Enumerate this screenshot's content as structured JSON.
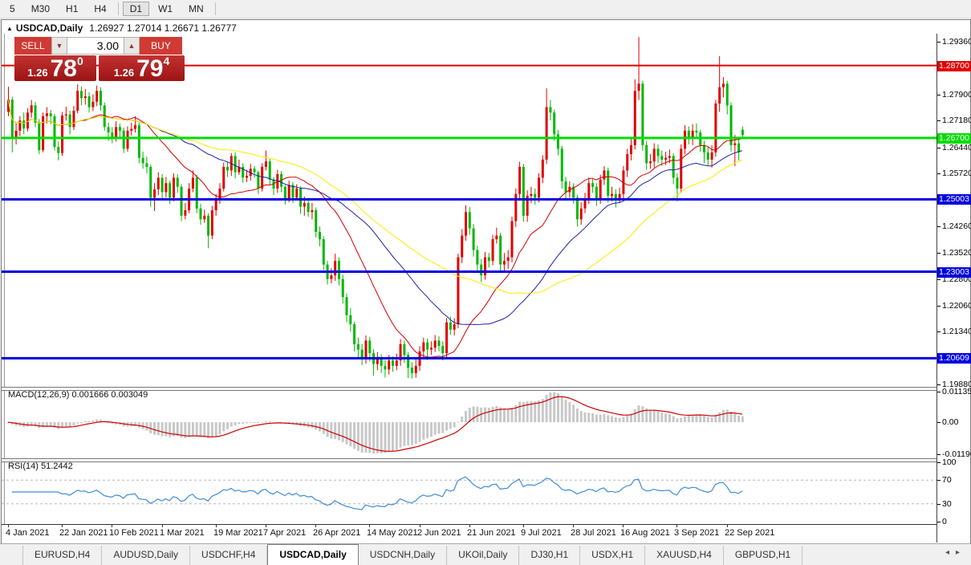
{
  "toolbar": {
    "items": [
      "5",
      "M30",
      "H1",
      "H4",
      "D1",
      "W1",
      "MN"
    ],
    "active": "D1",
    "separators_after": [
      "H4",
      "MN"
    ]
  },
  "window": {
    "collapse_icon": "▲",
    "title_symbol": "USDCAD,Daily",
    "title_ohlc": "1.26927 1.27014 1.26671 1.26777"
  },
  "trade_panel": {
    "sell_label": "SELL",
    "buy_label": "BUY",
    "volume": "3.00",
    "spin_down_icon": "▼",
    "spin_up_icon": "▲",
    "sell_price": {
      "prefix": "1.26",
      "big": "78",
      "sup": "0"
    },
    "buy_price": {
      "prefix": "1.26",
      "big": "79",
      "sup": "4"
    }
  },
  "chart_data": {
    "type": "candlestick",
    "symbol": "USDCAD",
    "timeframe": "Daily",
    "bull_color": "#e00000",
    "bear_color": "#00b800",
    "price_range": [
      1.1982,
      1.2958
    ],
    "y_ticks": [
      {
        "label": "1.29360",
        "price": 1.2936
      },
      {
        "label": "1.27900",
        "price": 1.279
      },
      {
        "label": "1.27180",
        "price": 1.2718
      },
      {
        "label": "1.26440",
        "price": 1.2644
      },
      {
        "label": "1.25720",
        "price": 1.2572
      },
      {
        "label": "1.24260",
        "price": 1.2426
      },
      {
        "label": "1.23520",
        "price": 1.2352
      },
      {
        "label": "1.22800",
        "price": 1.228
      },
      {
        "label": "1.22060",
        "price": 1.2206
      },
      {
        "label": "1.21340",
        "price": 1.2134
      },
      {
        "label": "1.19880",
        "price": 1.1988
      }
    ],
    "levels": [
      {
        "label": "1.28700",
        "price": 1.287,
        "color": "#e00000",
        "thickness": 2
      },
      {
        "label": "1.26700",
        "price": 1.267,
        "color": "#00dd00",
        "thickness": 3
      },
      {
        "label": "1.25003",
        "price": 1.25003,
        "color": "#0000e0",
        "thickness": 3
      },
      {
        "label": "1.23003",
        "price": 1.23003,
        "color": "#0000e0",
        "thickness": 3
      },
      {
        "label": "1.20609",
        "price": 1.20609,
        "color": "#0000e0",
        "thickness": 3
      }
    ],
    "x_ticks": [
      {
        "label": "4 Jan 2021",
        "bar": 0
      },
      {
        "label": "22 Jan 2021",
        "bar": 14
      },
      {
        "label": "10 Feb 2021",
        "bar": 27
      },
      {
        "label": "1 Mar 2021",
        "bar": 40
      },
      {
        "label": "19 Mar 2021",
        "bar": 54
      },
      {
        "label": "7 Apr 2021",
        "bar": 67
      },
      {
        "label": "26 Apr 2021",
        "bar": 80
      },
      {
        "label": "14 May 2021",
        "bar": 94
      },
      {
        "label": "2 Jun 2021",
        "bar": 107
      },
      {
        "label": "21 Jun 2021",
        "bar": 120
      },
      {
        "label": "9 Jul 2021",
        "bar": 134
      },
      {
        "label": "28 Jul 2021",
        "bar": 147
      },
      {
        "label": "16 Aug 2021",
        "bar": 160
      },
      {
        "label": "3 Sep 2021",
        "bar": 174
      },
      {
        "label": "22 Sep 2021",
        "bar": 187
      }
    ],
    "moving_averages": [
      {
        "period": 20,
        "color": "#d00000"
      },
      {
        "period": 40,
        "color": "#1f1fa8"
      },
      {
        "period": 60,
        "color": "#ffe800"
      }
    ],
    "macd": {
      "label": "MACD(12,26,9) 0.001666 0.003049",
      "fast": 12,
      "slow": 26,
      "signal": 9,
      "range": [
        -0.0119,
        0.01135
      ],
      "ticks": [
        {
          "label": "0.01135",
          "v": 0.01135
        },
        {
          "label": "0.00",
          "v": 0
        },
        {
          "label": "-0.011904",
          "v": -0.011904
        }
      ],
      "hist_color": "#c8c8c8",
      "line_color": "#d00000"
    },
    "rsi": {
      "label": "RSI(14) 51.2442",
      "period": 14,
      "range": [
        0,
        100
      ],
      "ticks": [
        {
          "label": "100",
          "v": 100
        },
        {
          "label": "70",
          "v": 70
        },
        {
          "label": "30",
          "v": 30
        },
        {
          "label": "0",
          "v": 0
        }
      ],
      "level_lines": [
        70,
        30
      ],
      "color": "#3c8cdc"
    },
    "candles_ohlc": [
      [
        1.2742,
        1.2812,
        1.273,
        1.2776
      ],
      [
        1.2776,
        1.2784,
        1.263,
        1.2668
      ],
      [
        1.2668,
        1.271,
        1.2652,
        1.269
      ],
      [
        1.269,
        1.273,
        1.2675,
        1.2718
      ],
      [
        1.2718,
        1.274,
        1.268,
        1.2696
      ],
      [
        1.2696,
        1.2752,
        1.2688,
        1.274
      ],
      [
        1.274,
        1.2775,
        1.2726,
        1.276
      ],
      [
        1.276,
        1.277,
        1.27,
        1.2712
      ],
      [
        1.2712,
        1.2722,
        1.2625,
        1.2636
      ],
      [
        1.2636,
        1.274,
        1.263,
        1.273
      ],
      [
        1.273,
        1.2755,
        1.271,
        1.2738
      ],
      [
        1.2738,
        1.2748,
        1.2708,
        1.273
      ],
      [
        1.273,
        1.2736,
        1.2635,
        1.2645
      ],
      [
        1.2645,
        1.266,
        1.2608,
        1.2628
      ],
      [
        1.2628,
        1.2742,
        1.262,
        1.2732
      ],
      [
        1.2732,
        1.2756,
        1.2718,
        1.2735
      ],
      [
        1.2735,
        1.2745,
        1.268,
        1.27
      ],
      [
        1.27,
        1.2758,
        1.2692,
        1.2745
      ],
      [
        1.2745,
        1.2818,
        1.2738,
        1.28
      ],
      [
        1.28,
        1.2812,
        1.276,
        1.278
      ],
      [
        1.278,
        1.2805,
        1.2762,
        1.2785
      ],
      [
        1.2785,
        1.2796,
        1.274,
        1.2755
      ],
      [
        1.2755,
        1.279,
        1.2744,
        1.277
      ],
      [
        1.277,
        1.2815,
        1.2758,
        1.28
      ],
      [
        1.28,
        1.281,
        1.2745,
        1.276
      ],
      [
        1.276,
        1.2768,
        1.269,
        1.27
      ],
      [
        1.27,
        1.2712,
        1.2662,
        1.2685
      ],
      [
        1.2685,
        1.27,
        1.2655,
        1.2672
      ],
      [
        1.2672,
        1.2716,
        1.266,
        1.27
      ],
      [
        1.27,
        1.271,
        1.267,
        1.269
      ],
      [
        1.269,
        1.2698,
        1.2628,
        1.264
      ],
      [
        1.264,
        1.2702,
        1.2632,
        1.269
      ],
      [
        1.269,
        1.2712,
        1.2676,
        1.2695
      ],
      [
        1.2695,
        1.273,
        1.2685,
        1.2705
      ],
      [
        1.2705,
        1.2712,
        1.26,
        1.2615
      ],
      [
        1.2615,
        1.2632,
        1.2585,
        1.26
      ],
      [
        1.26,
        1.2618,
        1.2572,
        1.259
      ],
      [
        1.259,
        1.2596,
        1.248,
        1.2505
      ],
      [
        1.2505,
        1.2545,
        1.2468,
        1.2528
      ],
      [
        1.2528,
        1.2575,
        1.2512,
        1.256
      ],
      [
        1.256,
        1.257,
        1.2502,
        1.252
      ],
      [
        1.252,
        1.2562,
        1.2505,
        1.2545
      ],
      [
        1.2545,
        1.2552,
        1.2488,
        1.2505
      ],
      [
        1.2505,
        1.2572,
        1.2495,
        1.256
      ],
      [
        1.256,
        1.257,
        1.2518,
        1.2535
      ],
      [
        1.2535,
        1.2542,
        1.244,
        1.2455
      ],
      [
        1.2455,
        1.249,
        1.2445,
        1.247
      ],
      [
        1.247,
        1.2545,
        1.2462,
        1.253
      ],
      [
        1.253,
        1.258,
        1.252,
        1.256
      ],
      [
        1.256,
        1.2568,
        1.2462,
        1.2475
      ],
      [
        1.2475,
        1.2488,
        1.243,
        1.2445
      ],
      [
        1.2445,
        1.2472,
        1.2435,
        1.2455
      ],
      [
        1.2455,
        1.2462,
        1.2365,
        1.24
      ],
      [
        1.24,
        1.2482,
        1.239,
        1.247
      ],
      [
        1.247,
        1.2515,
        1.2455,
        1.25
      ],
      [
        1.25,
        1.2545,
        1.2488,
        1.253
      ],
      [
        1.253,
        1.2602,
        1.2522,
        1.259
      ],
      [
        1.259,
        1.2605,
        1.2562,
        1.258
      ],
      [
        1.258,
        1.2628,
        1.2565,
        1.262
      ],
      [
        1.262,
        1.263,
        1.2558,
        1.2575
      ],
      [
        1.2575,
        1.261,
        1.2568,
        1.259
      ],
      [
        1.259,
        1.26,
        1.2546,
        1.256
      ],
      [
        1.256,
        1.2582,
        1.2548,
        1.2565
      ],
      [
        1.2565,
        1.2598,
        1.2552,
        1.2585
      ],
      [
        1.2585,
        1.2592,
        1.256,
        1.2575
      ],
      [
        1.2575,
        1.258,
        1.2515,
        1.253
      ],
      [
        1.253,
        1.26,
        1.2522,
        1.259
      ],
      [
        1.259,
        1.2635,
        1.258,
        1.2605
      ],
      [
        1.2605,
        1.2612,
        1.254,
        1.2555
      ],
      [
        1.2555,
        1.2562,
        1.2512,
        1.253
      ],
      [
        1.253,
        1.2582,
        1.2518,
        1.257
      ],
      [
        1.257,
        1.2578,
        1.252,
        1.2535
      ],
      [
        1.2535,
        1.254,
        1.2486,
        1.25
      ],
      [
        1.25,
        1.2552,
        1.2492,
        1.254
      ],
      [
        1.254,
        1.2548,
        1.249,
        1.2505
      ],
      [
        1.2505,
        1.2542,
        1.2498,
        1.253
      ],
      [
        1.253,
        1.2536,
        1.246,
        1.248
      ],
      [
        1.248,
        1.2508,
        1.2455,
        1.249
      ],
      [
        1.249,
        1.25,
        1.2452,
        1.2465
      ],
      [
        1.2465,
        1.249,
        1.2445,
        1.247
      ],
      [
        1.247,
        1.2478,
        1.2395,
        1.241
      ],
      [
        1.241,
        1.2425,
        1.237,
        1.239
      ],
      [
        1.239,
        1.2398,
        1.2305,
        1.232
      ],
      [
        1.232,
        1.233,
        1.2265,
        1.228
      ],
      [
        1.228,
        1.231,
        1.2268,
        1.229
      ],
      [
        1.229,
        1.235,
        1.2275,
        1.233
      ],
      [
        1.233,
        1.234,
        1.2262,
        1.228
      ],
      [
        1.228,
        1.2292,
        1.2212,
        1.223
      ],
      [
        1.223,
        1.224,
        1.216,
        1.218
      ],
      [
        1.218,
        1.22,
        1.2135,
        1.2155
      ],
      [
        1.2155,
        1.2162,
        1.208,
        1.21
      ],
      [
        1.21,
        1.2118,
        1.2062,
        1.2085
      ],
      [
        1.2085,
        1.21,
        1.2042,
        1.206
      ],
      [
        1.206,
        1.2124,
        1.2046,
        1.211
      ],
      [
        1.211,
        1.212,
        1.2052,
        1.2075
      ],
      [
        1.2075,
        1.2086,
        1.2013,
        1.2045
      ],
      [
        1.2045,
        1.2078,
        1.2028,
        1.206
      ],
      [
        1.206,
        1.2072,
        1.202,
        1.204
      ],
      [
        1.204,
        1.2056,
        1.2008,
        1.203
      ],
      [
        1.203,
        1.207,
        1.2016,
        1.2055
      ],
      [
        1.2055,
        1.2066,
        1.2024,
        1.204
      ],
      [
        1.204,
        1.2074,
        1.2028,
        1.2055
      ],
      [
        1.2055,
        1.2114,
        1.204,
        1.21
      ],
      [
        1.21,
        1.211,
        1.2048,
        1.207
      ],
      [
        1.207,
        1.2078,
        1.2006,
        1.2035
      ],
      [
        1.2035,
        1.205,
        1.2005,
        1.202
      ],
      [
        1.202,
        1.206,
        1.2007,
        1.204
      ],
      [
        1.204,
        1.2094,
        1.2026,
        1.208
      ],
      [
        1.208,
        1.2118,
        1.2064,
        1.2105
      ],
      [
        1.2105,
        1.2116,
        1.2056,
        1.2085
      ],
      [
        1.2085,
        1.2108,
        1.207,
        1.209
      ],
      [
        1.209,
        1.2125,
        1.2078,
        1.211
      ],
      [
        1.211,
        1.2122,
        1.208,
        1.2095
      ],
      [
        1.2095,
        1.2108,
        1.2055,
        1.2075
      ],
      [
        1.2075,
        1.2172,
        1.2062,
        1.216
      ],
      [
        1.216,
        1.2176,
        1.2126,
        1.214
      ],
      [
        1.214,
        1.2172,
        1.2124,
        1.2155
      ],
      [
        1.2155,
        1.235,
        1.2144,
        1.234
      ],
      [
        1.234,
        1.2418,
        1.2324,
        1.24
      ],
      [
        1.24,
        1.2484,
        1.2386,
        1.2465
      ],
      [
        1.2465,
        1.248,
        1.2402,
        1.242
      ],
      [
        1.242,
        1.2432,
        1.2342,
        1.236
      ],
      [
        1.236,
        1.2372,
        1.2302,
        1.232
      ],
      [
        1.232,
        1.2335,
        1.2272,
        1.229
      ],
      [
        1.229,
        1.2355,
        1.2278,
        1.234
      ],
      [
        1.234,
        1.2352,
        1.2312,
        1.233
      ],
      [
        1.233,
        1.2402,
        1.2318,
        1.239
      ],
      [
        1.239,
        1.2422,
        1.2378,
        1.24
      ],
      [
        1.24,
        1.2408,
        1.2302,
        1.232
      ],
      [
        1.232,
        1.2352,
        1.2302,
        1.233
      ],
      [
        1.233,
        1.236,
        1.2308,
        1.234
      ],
      [
        1.234,
        1.2452,
        1.2326,
        1.244
      ],
      [
        1.244,
        1.253,
        1.2424,
        1.2515
      ],
      [
        1.2515,
        1.2604,
        1.2496,
        1.259
      ],
      [
        1.259,
        1.2598,
        1.2438,
        1.2455
      ],
      [
        1.2455,
        1.2525,
        1.2438,
        1.251
      ],
      [
        1.251,
        1.2535,
        1.249,
        1.2515
      ],
      [
        1.2515,
        1.253,
        1.2485,
        1.2505
      ],
      [
        1.2505,
        1.2572,
        1.2492,
        1.256
      ],
      [
        1.256,
        1.2622,
        1.2545,
        1.261
      ],
      [
        1.261,
        1.2807,
        1.2598,
        1.2755
      ],
      [
        1.2755,
        1.2775,
        1.2718,
        1.274
      ],
      [
        1.274,
        1.2748,
        1.2662,
        1.268
      ],
      [
        1.268,
        1.2692,
        1.2622,
        1.264
      ],
      [
        1.264,
        1.2648,
        1.253,
        1.255
      ],
      [
        1.255,
        1.2562,
        1.2502,
        1.252
      ],
      [
        1.252,
        1.255,
        1.2505,
        1.2535
      ],
      [
        1.2535,
        1.2545,
        1.2488,
        1.2505
      ],
      [
        1.2505,
        1.2512,
        1.2425,
        1.2445
      ],
      [
        1.2445,
        1.2492,
        1.243,
        1.2475
      ],
      [
        1.2475,
        1.2518,
        1.2462,
        1.25
      ],
      [
        1.25,
        1.256,
        1.2488,
        1.2545
      ],
      [
        1.2545,
        1.2558,
        1.2518,
        1.2535
      ],
      [
        1.2535,
        1.2545,
        1.2482,
        1.25
      ],
      [
        1.25,
        1.2568,
        1.2488,
        1.2555
      ],
      [
        1.2555,
        1.2592,
        1.254,
        1.258
      ],
      [
        1.258,
        1.2588,
        1.2492,
        1.251
      ],
      [
        1.251,
        1.2535,
        1.2495,
        1.2515
      ],
      [
        1.2515,
        1.2528,
        1.2478,
        1.25
      ],
      [
        1.25,
        1.2532,
        1.249,
        1.2515
      ],
      [
        1.2515,
        1.2592,
        1.2502,
        1.258
      ],
      [
        1.258,
        1.264,
        1.2562,
        1.2625
      ],
      [
        1.2625,
        1.2668,
        1.2608,
        1.265
      ],
      [
        1.265,
        1.2832,
        1.2638,
        1.28
      ],
      [
        1.28,
        1.2949,
        1.2775,
        1.282
      ],
      [
        1.282,
        1.2828,
        1.2635,
        1.265
      ],
      [
        1.265,
        1.2662,
        1.2582,
        1.26
      ],
      [
        1.26,
        1.2625,
        1.2585,
        1.2605
      ],
      [
        1.2605,
        1.2655,
        1.2588,
        1.264
      ],
      [
        1.264,
        1.2652,
        1.26,
        1.262
      ],
      [
        1.262,
        1.2635,
        1.2592,
        1.261
      ],
      [
        1.261,
        1.2632,
        1.2595,
        1.2615
      ],
      [
        1.2615,
        1.2638,
        1.26,
        1.262
      ],
      [
        1.262,
        1.2628,
        1.2542,
        1.256
      ],
      [
        1.256,
        1.2572,
        1.2495,
        1.253
      ],
      [
        1.253,
        1.2652,
        1.2518,
        1.264
      ],
      [
        1.264,
        1.2705,
        1.2625,
        1.269
      ],
      [
        1.269,
        1.2702,
        1.2652,
        1.267
      ],
      [
        1.267,
        1.2708,
        1.265,
        1.269
      ],
      [
        1.269,
        1.271,
        1.2668,
        1.2685
      ],
      [
        1.2685,
        1.2692,
        1.2632,
        1.265
      ],
      [
        1.265,
        1.2662,
        1.26,
        1.263
      ],
      [
        1.263,
        1.2645,
        1.2592,
        1.261
      ],
      [
        1.261,
        1.265,
        1.2588,
        1.263
      ],
      [
        1.263,
        1.2775,
        1.2618,
        1.2765
      ],
      [
        1.2765,
        1.2896,
        1.2742,
        1.281
      ],
      [
        1.281,
        1.2838,
        1.2782,
        1.282
      ],
      [
        1.282,
        1.2828,
        1.2735,
        1.276
      ],
      [
        1.276,
        1.2768,
        1.2632,
        1.265
      ],
      [
        1.265,
        1.2678,
        1.2592,
        1.2655
      ],
      [
        1.2655,
        1.2672,
        1.2608,
        1.263
      ],
      [
        1.26927,
        1.27014,
        1.26671,
        1.26777
      ]
    ]
  },
  "tabs": {
    "items": [
      "EURUSD,H4",
      "AUDUSD,Daily",
      "USDCHF,H4",
      "USDCAD,Daily",
      "USDCNH,Daily",
      "UKOil,Daily",
      "DJ30,H1",
      "USDX,H1",
      "XAUUSD,H4",
      "GBPUSD,H1"
    ],
    "active": "USDCAD,Daily",
    "scroll_left_icon": "◂",
    "scroll_right_icon": "▸"
  }
}
